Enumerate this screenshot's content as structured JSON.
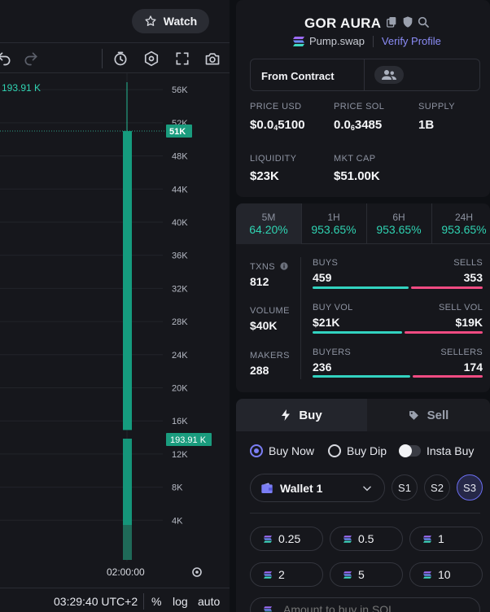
{
  "header": {
    "watch_label": "Watch"
  },
  "chart_data": {
    "type": "bar",
    "y_ticks": [
      "56K",
      "52K",
      "48K",
      "44K",
      "40K",
      "36K",
      "32K",
      "28K",
      "24K",
      "20K",
      "16K",
      "12K",
      "8K",
      "4K"
    ],
    "ylim": [
      0,
      57000
    ],
    "candle_high": 56900,
    "candle_close": 51000,
    "candle_low": 14900,
    "last_price_label": "51K",
    "volume_label": "193.91 K",
    "volume_value": 193910,
    "time_label": "02:00:00"
  },
  "chart_footer": {
    "clock": "03:29:40 UTC+2",
    "percent_label": "%",
    "log_label": "log",
    "auto_label": "auto"
  },
  "token": {
    "name": "GOR AURA",
    "dex": "Pump.swap",
    "verify_label": "Verify Profile",
    "contract_label": "From Contract",
    "stats": [
      {
        "label": "PRICE USD",
        "value_main": "$0.0",
        "value_sub": "4",
        "value_end": "5100"
      },
      {
        "label": "PRICE SOL",
        "value_main": "0.0",
        "value_sub": "6",
        "value_end": "3485"
      },
      {
        "label": "SUPPLY",
        "value_main": "1B",
        "value_sub": "",
        "value_end": ""
      },
      {
        "label": "LIQUIDITY",
        "value_main": "$23K",
        "value_sub": "",
        "value_end": ""
      },
      {
        "label": "MKT CAP",
        "value_main": "$51.00K",
        "value_sub": "",
        "value_end": ""
      }
    ]
  },
  "timeframes": [
    {
      "name": "5M",
      "change": "64.20%"
    },
    {
      "name": "1H",
      "change": "953.65%"
    },
    {
      "name": "6H",
      "change": "953.65%"
    },
    {
      "name": "24H",
      "change": "953.65%"
    }
  ],
  "activity": {
    "txns": {
      "label": "TXNS",
      "value": "812",
      "buy_label": "BUYS",
      "buy_value": "459",
      "sell_label": "SELLS",
      "sell_value": "353",
      "buy_fraction": 0.565
    },
    "volume": {
      "label": "VOLUME",
      "value": "$40K",
      "buy_label": "BUY VOL",
      "buy_value": "$21K",
      "sell_label": "SELL VOL",
      "sell_value": "$19K",
      "buy_fraction": 0.525
    },
    "makers": {
      "label": "MAKERS",
      "value": "288",
      "buy_label": "BUYERS",
      "buy_value": "236",
      "sell_label": "SELLERS",
      "sell_value": "174",
      "buy_fraction": 0.575
    }
  },
  "trade": {
    "buy_tab": "Buy",
    "sell_tab": "Sell",
    "order_types": [
      "Buy Now",
      "Buy Dip",
      "Insta Buy"
    ],
    "wallet": "Wallet 1",
    "slots": [
      "S1",
      "S2",
      "S3"
    ],
    "amounts": [
      "0.25",
      "0.5",
      "1",
      "2",
      "5",
      "10"
    ],
    "amount_placeholder": "Amount to buy in SOL"
  },
  "colors": {
    "accent": "#7b7ef5",
    "positive": "#2fd3b2",
    "buy_bar": "#32d3c0",
    "sell_bar": "#f04b82",
    "candle": "#159c7e"
  }
}
